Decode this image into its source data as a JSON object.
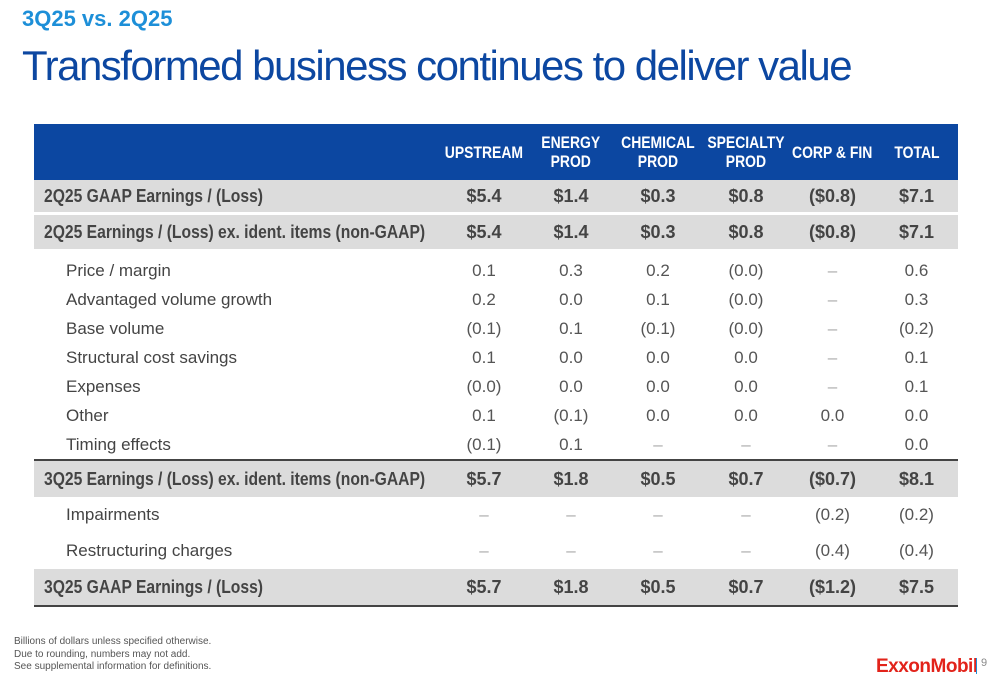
{
  "kicker": "3Q25 vs. 2Q25",
  "title": "Transformed business continues to deliver value",
  "columns": [
    "UPSTREAM",
    "ENERGY PROD",
    "CHEMICAL PROD",
    "SPECIALTY PROD",
    "CORP & FIN",
    "TOTAL"
  ],
  "rows": [
    {
      "label": "2Q25 GAAP Earnings / (Loss)",
      "values": [
        "$5.4",
        "$1.4",
        "$0.3",
        "$0.8",
        "($0.8)",
        "$7.1"
      ]
    },
    {
      "label": "2Q25 Earnings / (Loss) ex. ident. items (non-GAAP)",
      "values": [
        "$5.4",
        "$1.4",
        "$0.3",
        "$0.8",
        "($0.8)",
        "$7.1"
      ]
    },
    {
      "label": "Price / margin",
      "values": [
        "0.1",
        "0.3",
        "0.2",
        "(0.0)",
        "–",
        "0.6"
      ]
    },
    {
      "label": "Advantaged volume growth",
      "values": [
        "0.2",
        "0.0",
        "0.1",
        "(0.0)",
        "–",
        "0.3"
      ]
    },
    {
      "label": "Base volume",
      "values": [
        "(0.1)",
        "0.1",
        "(0.1)",
        "(0.0)",
        "–",
        "(0.2)"
      ]
    },
    {
      "label": "Structural cost savings",
      "values": [
        "0.1",
        "0.0",
        "0.0",
        "0.0",
        "–",
        "0.1"
      ]
    },
    {
      "label": "Expenses",
      "values": [
        "(0.0)",
        "0.0",
        "0.0",
        "0.0",
        "–",
        "0.1"
      ]
    },
    {
      "label": "Other",
      "values": [
        "0.1",
        "(0.1)",
        "0.0",
        "0.0",
        "0.0",
        "0.0"
      ]
    },
    {
      "label": "Timing effects",
      "values": [
        "(0.1)",
        "0.1",
        "–",
        "–",
        "–",
        "0.0"
      ]
    },
    {
      "label": "3Q25 Earnings / (Loss) ex. ident. items (non-GAAP)",
      "values": [
        "$5.7",
        "$1.8",
        "$0.5",
        "$0.7",
        "($0.7)",
        "$8.1"
      ]
    },
    {
      "label": "Impairments",
      "values": [
        "–",
        "–",
        "–",
        "–",
        "(0.2)",
        "(0.2)"
      ]
    },
    {
      "label": "Restructuring charges",
      "values": [
        "–",
        "–",
        "–",
        "–",
        "(0.4)",
        "(0.4)"
      ]
    },
    {
      "label": "3Q25 GAAP Earnings / (Loss)",
      "values": [
        "$5.7",
        "$1.8",
        "$0.5",
        "$0.7",
        "($1.2)",
        "$7.5"
      ]
    }
  ],
  "footnotes": [
    "Billions of dollars unless specified otherwise.",
    "Due to rounding, numbers may not add.",
    "See supplemental information for definitions."
  ],
  "logo": "ExxonMobil",
  "page_number": "9",
  "colors": {
    "brand_blue": "#0c47a1",
    "kicker_blue": "#1d8fd8",
    "logo_red": "#e2231a",
    "row_gray": "#dcdcdc"
  }
}
